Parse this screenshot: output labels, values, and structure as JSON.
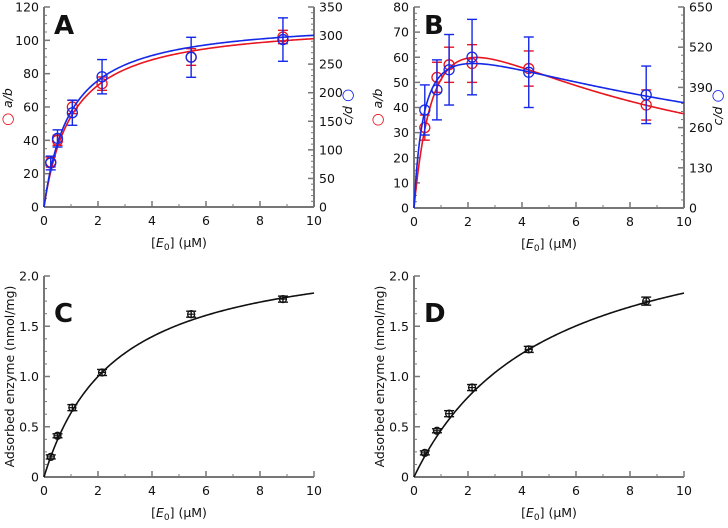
{
  "chart_data": [
    {
      "panel": "A",
      "type": "scatter",
      "xlabel": "[E0] (μM)",
      "xlabel_main": "[E",
      "xlabel_sub": "0",
      "xlabel_tail": "] (μM)",
      "ylabel": "a/b",
      "y2label": "c/d",
      "xlim": [
        0,
        10
      ],
      "xticks": [
        0,
        2,
        4,
        6,
        8,
        10
      ],
      "ylim": [
        0,
        120
      ],
      "yticks": [
        0,
        20,
        40,
        60,
        80,
        100,
        120
      ],
      "y2lim": [
        0,
        350
      ],
      "y2ticks": [
        0,
        50,
        100,
        150,
        200,
        250,
        300,
        350
      ],
      "series": [
        {
          "name": "a/b",
          "axis": "left",
          "color": "#e8141e",
          "x": [
            0.25,
            0.5,
            1.05,
            2.15,
            5.45,
            8.85
          ],
          "y": [
            27,
            40,
            60,
            74,
            90,
            102
          ],
          "err": [
            3,
            3,
            4,
            4,
            5,
            4
          ],
          "fit": {
            "model": "hyperbolic",
            "Vmax": 111.7,
            "K": 1.06
          }
        },
        {
          "name": "c/d",
          "axis": "right",
          "color": "#1428e8",
          "x": [
            0.25,
            0.5,
            1.05,
            2.15,
            5.45,
            8.85
          ],
          "y": [
            77,
            120,
            165,
            228,
            262,
            293
          ],
          "err": [
            12,
            15,
            22,
            30,
            35,
            38
          ],
          "fit": {
            "model": "hyperbolic",
            "Vmax": 330,
            "K": 0.98
          }
        }
      ]
    },
    {
      "panel": "B",
      "type": "scatter",
      "xlabel": "[E0] (μM)",
      "xlabel_main": "[E",
      "xlabel_sub": "0",
      "xlabel_tail": "] (μM)",
      "ylabel": "a/b",
      "y2label": "c/d",
      "xlim": [
        0,
        10
      ],
      "xticks": [
        0,
        2,
        4,
        6,
        8,
        10
      ],
      "ylim": [
        0,
        80
      ],
      "yticks": [
        0,
        10,
        20,
        30,
        40,
        50,
        60,
        70,
        80
      ],
      "y2lim": [
        0,
        650
      ],
      "y2ticks": [
        0,
        130,
        260,
        390,
        520,
        650
      ],
      "series": [
        {
          "name": "a/b",
          "axis": "left",
          "color": "#e8141e",
          "x": [
            0.4,
            0.85,
            1.3,
            2.15,
            4.25,
            8.6
          ],
          "y": [
            32,
            52,
            57,
            57.5,
            55.5,
            41
          ],
          "err": [
            5,
            6,
            7,
            7.5,
            7,
            6
          ],
          "fit": {
            "model": "substrate-inhibition",
            "Vmax": 112,
            "K": 1.0,
            "Ki": 5.3
          }
        },
        {
          "name": "c/d",
          "axis": "right",
          "color": "#1428e8",
          "x": [
            0.4,
            0.85,
            1.3,
            2.15,
            4.25,
            8.6
          ],
          "y": [
            317,
            382,
            447,
            488,
            439,
            366
          ],
          "err": [
            81,
            97,
            114,
            122,
            114,
            93
          ],
          "fit": {
            "model": "substrate-inhibition",
            "Vmax": 638,
            "K": 0.4,
            "Ki": 12
          }
        }
      ]
    },
    {
      "panel": "C",
      "type": "scatter",
      "xlabel": "[E0] (μM)",
      "xlabel_main": "[E",
      "xlabel_sub": "0",
      "xlabel_tail": "] (μM)",
      "ylabel": "Adsorbed enzyme (nmol/mg)",
      "xlim": [
        0,
        10
      ],
      "xticks": [
        0,
        2,
        4,
        6,
        8,
        10
      ],
      "ylim": [
        0,
        2.0
      ],
      "yticks": [
        "0",
        "0.5",
        "1.0",
        "1.5",
        "2.0"
      ],
      "series": [
        {
          "name": "adsorbed",
          "axis": "left",
          "color": "#111111",
          "x": [
            0.25,
            0.5,
            1.05,
            2.15,
            5.45,
            8.85
          ],
          "y": [
            0.2,
            0.41,
            0.69,
            1.04,
            1.62,
            1.77
          ],
          "err": [
            0.02,
            0.02,
            0.03,
            0.03,
            0.03,
            0.03
          ],
          "fit": {
            "model": "hyperbolic",
            "Vmax": 2.31,
            "K": 2.62
          }
        }
      ]
    },
    {
      "panel": "D",
      "type": "scatter",
      "xlabel": "[E0] (μM)",
      "xlabel_main": "[E",
      "xlabel_sub": "0",
      "xlabel_tail": "] (μM)",
      "ylabel": "Adsorbed enzyme (nmol/mg)",
      "xlim": [
        0,
        10
      ],
      "xticks": [
        0,
        2,
        4,
        6,
        8,
        10
      ],
      "ylim": [
        0,
        2.0
      ],
      "yticks": [
        "0",
        "0.5",
        "1.0",
        "1.5",
        "2.0"
      ],
      "series": [
        {
          "name": "adsorbed",
          "axis": "left",
          "color": "#111111",
          "x": [
            0.4,
            0.85,
            1.3,
            2.15,
            4.25,
            8.6
          ],
          "y": [
            0.24,
            0.46,
            0.63,
            0.89,
            1.27,
            1.75
          ],
          "err": [
            0.02,
            0.02,
            0.03,
            0.03,
            0.03,
            0.04
          ],
          "fit": {
            "model": "hyperbolic",
            "Vmax": 2.716,
            "K": 4.84
          }
        }
      ]
    }
  ]
}
